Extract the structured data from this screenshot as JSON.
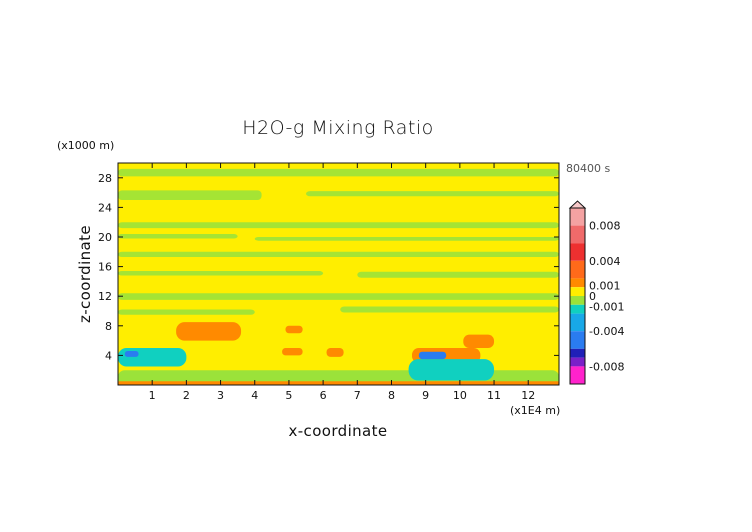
{
  "chart_data": {
    "type": "heatmap",
    "title": "H2O-g Mixing Ratio",
    "xlabel": "x-coordinate",
    "ylabel": "z-coordinate",
    "x_unit": "(x1E4 m)",
    "y_unit": "(x1000 m)",
    "time_label": "80400 s",
    "xlim": [
      0,
      12.9
    ],
    "ylim": [
      0,
      30
    ],
    "xticks": [
      "1",
      "2",
      "3",
      "4",
      "5",
      "6",
      "7",
      "8",
      "9",
      "10",
      "11",
      "12"
    ],
    "yticks": [
      "4",
      "8",
      "12",
      "16",
      "20",
      "24",
      "28"
    ],
    "colorbar": {
      "labels": [
        "0.008",
        "0.004",
        "0.001",
        "0",
        "-0.001",
        "-0.004",
        "-0.008"
      ],
      "range": [
        -0.01,
        0.01
      ],
      "colors": {
        "max": "#f4a2a2",
        "high": "#ee3030",
        "mid_high": "#ff8a00",
        "low_pos": "#ffee00",
        "zero": "#9be23a",
        "low_neg": "#10d0c0",
        "mid_neg": "#2a7cf0",
        "high_neg": "#2020b8",
        "min": "#ff22cc"
      }
    },
    "regions": [
      {
        "x": [
          0,
          12.9
        ],
        "z": [
          0,
          30
        ],
        "value": 0.0004
      },
      {
        "x": [
          0,
          12.9
        ],
        "z": [
          0,
          2
        ],
        "value": -0.0005
      },
      {
        "x": [
          0,
          12.9
        ],
        "z": [
          0,
          0.5
        ],
        "value": 0.002
      },
      {
        "x": [
          1.5,
          4.5
        ],
        "z": [
          5.5,
          9
        ],
        "value": 0.0008
      },
      {
        "x": [
          1.7,
          3.6
        ],
        "z": [
          6,
          8.5
        ],
        "value": 0.003
      },
      {
        "x": [
          4.9,
          5.4
        ],
        "z": [
          7,
          8
        ],
        "value": 0.003
      },
      {
        "x": [
          4.8,
          5.4
        ],
        "z": [
          4,
          5
        ],
        "value": 0.003
      },
      {
        "x": [
          6.1,
          6.6
        ],
        "z": [
          3.8,
          5
        ],
        "value": 0.003
      },
      {
        "x": [
          8.6,
          10.6
        ],
        "z": [
          3,
          5
        ],
        "value": 0.003
      },
      {
        "x": [
          10.1,
          11.0
        ],
        "z": [
          5,
          6.8
        ],
        "value": 0.002
      },
      {
        "x": [
          0,
          2.0
        ],
        "z": [
          2.5,
          5
        ],
        "value": -0.002
      },
      {
        "x": [
          8.5,
          11.0
        ],
        "z": [
          0.6,
          3.5
        ],
        "value": -0.002
      },
      {
        "x": [
          0.2,
          0.6
        ],
        "z": [
          3.8,
          4.6
        ],
        "value": -0.004
      },
      {
        "x": [
          8.8,
          9.6
        ],
        "z": [
          3.5,
          4.5
        ],
        "value": -0.004
      }
    ]
  }
}
